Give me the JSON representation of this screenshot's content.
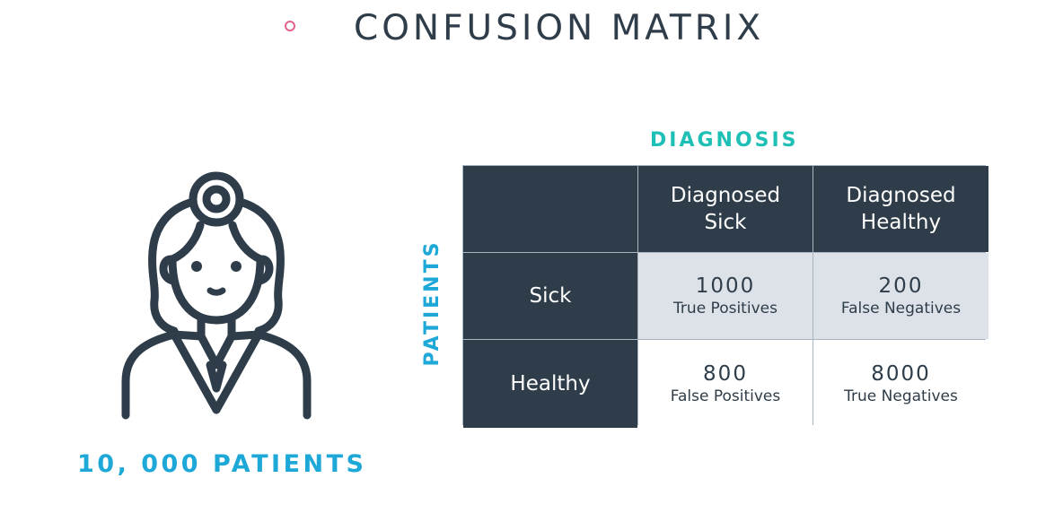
{
  "title": "CONFUSION MATRIX",
  "accent_colors": {
    "title_dot": "#e0638f",
    "diagnosis": "#1ebfb5",
    "patients": "#1ea8d8",
    "dark_cell": "#2e3d49",
    "shaded_cell": "#dde2e8"
  },
  "icon": "doctor-icon",
  "patients_count": "10, 000 PATIENTS",
  "column_axis_label": "DIAGNOSIS",
  "row_axis_label": "PATIENTS",
  "matrix": {
    "columns": [
      {
        "line1": "Diagnosed",
        "line2": "Sick"
      },
      {
        "line1": "Diagnosed",
        "line2": "Healthy"
      }
    ],
    "rows": [
      {
        "label": "Sick",
        "cells": [
          {
            "value": "1000",
            "caption": "True Positives"
          },
          {
            "value": "200",
            "caption": "False Negatives"
          }
        ]
      },
      {
        "label": "Healthy",
        "cells": [
          {
            "value": "800",
            "caption": "False Positives"
          },
          {
            "value": "8000",
            "caption": "True Negatives"
          }
        ]
      }
    ]
  }
}
